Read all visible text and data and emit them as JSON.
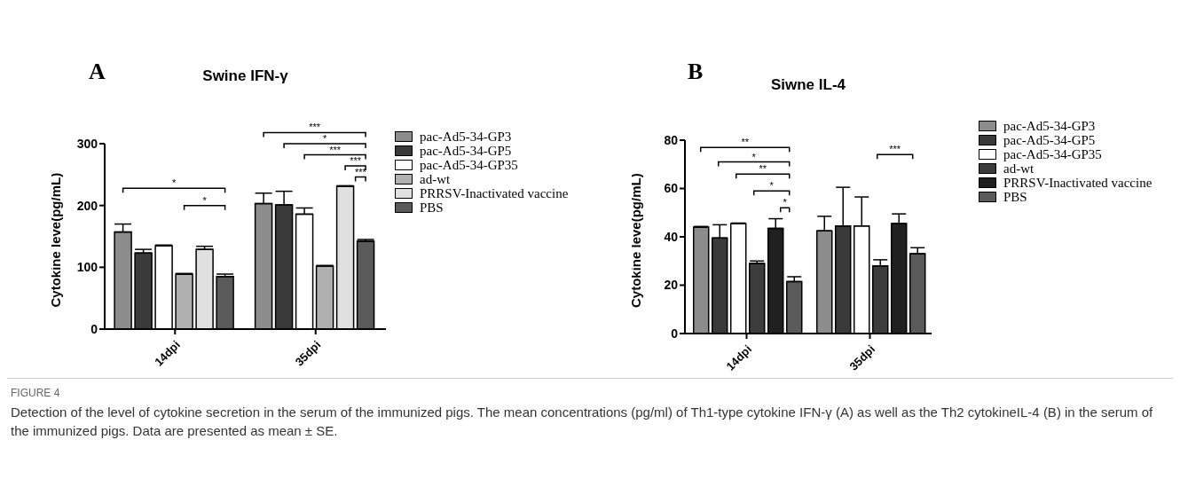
{
  "chart_data": [
    {
      "type": "bar",
      "title": "Swine IFN-γ",
      "ylabel": "Cytokine leve(pg/mL)",
      "categories": [
        "14dpi",
        "35dpi"
      ],
      "series": [
        {
          "name": "pac-Ad5-34-GP3",
          "color": "#8c8c8c",
          "values": [
            157,
            203
          ],
          "errors": [
            [
              157,
              170
            ],
            [
              203,
              220
            ]
          ]
        },
        {
          "name": "pac-Ad5-34-GP5",
          "color": "#3a3a3a",
          "values": [
            123,
            201
          ],
          "errors": [
            [
              123,
              129
            ],
            [
              201,
              223
            ]
          ]
        },
        {
          "name": "pac-Ad5-34-GP35",
          "color": "#ffffff",
          "values": [
            135,
            186
          ],
          "errors": [
            [
              135,
              136
            ],
            [
              186,
              196
            ]
          ]
        },
        {
          "name": "ad-wt",
          "color": "#b0b0b0",
          "values": [
            89,
            102
          ],
          "errors": [
            [
              89,
              90
            ],
            [
              102,
              103
            ]
          ]
        },
        {
          "name": "PRRSV-Inactivated vaccine",
          "color": "#e0e0e0",
          "values": [
            129,
            231
          ],
          "errors": [
            [
              129,
              134
            ],
            [
              231,
              232
            ]
          ]
        },
        {
          "name": "PBS",
          "color": "#5a5a5a",
          "values": [
            85,
            142
          ],
          "errors": [
            [
              85,
              89
            ],
            [
              142,
              145
            ]
          ]
        }
      ],
      "ylim": [
        0,
        300
      ],
      "yticks": [
        0,
        100,
        200,
        300
      ],
      "grid": false,
      "legend": "right",
      "annotations": [
        "A",
        "*",
        "*",
        "***",
        "*",
        "***",
        "***",
        "***",
        "FIGURE 4",
        "Detection of the level of cytokine secretion in the serum of the immunized pigs. The mean concentrations (pg/ml) of Th1-type cytokine IFN-γ (A) as well as the Th2 cytokineIL-4 (B) in the serum of the immunized pigs. Data are presented as mean ± SE."
      ]
    },
    {
      "type": "bar",
      "title": "Siwne IL-4",
      "ylabel": "Cytokine leve(pg/mL)",
      "categories": [
        "14dpi",
        "35dpi"
      ],
      "series": [
        {
          "name": "pac-Ad5-34-GP3",
          "color": "#8c8c8c",
          "values": [
            44,
            42.5
          ],
          "errors": [
            [
              44,
              44.3
            ],
            [
              42.5,
              48.5
            ]
          ]
        },
        {
          "name": "pac-Ad5-34-GP5",
          "color": "#3a3a3a",
          "values": [
            39.5,
            44.5
          ],
          "errors": [
            [
              39.5,
              45
            ],
            [
              44.5,
              60.5
            ]
          ]
        },
        {
          "name": "pac-Ad5-34-GP35",
          "color": "#ffffff",
          "values": [
            45.5,
            44.5
          ],
          "errors": [
            [
              45.5,
              45.7
            ],
            [
              44.5,
              56.5
            ]
          ]
        },
        {
          "name": "ad-wt",
          "color": "#3c3c3c",
          "values": [
            29,
            28
          ],
          "errors": [
            [
              29,
              30
            ],
            [
              28,
              30.5
            ]
          ]
        },
        {
          "name": "PRRSV-Inactivated vaccine",
          "color": "#202020",
          "values": [
            43.5,
            45.5
          ],
          "errors": [
            [
              43.5,
              47.5
            ],
            [
              45.5,
              49.5
            ]
          ]
        },
        {
          "name": "PBS",
          "color": "#5a5a5a",
          "values": [
            21.5,
            33
          ],
          "errors": [
            [
              21.5,
              23.5
            ],
            [
              33,
              35.5
            ]
          ]
        }
      ],
      "ylim": [
        0,
        80
      ],
      "yticks": [
        0,
        20,
        40,
        60,
        80
      ],
      "grid": false,
      "legend": "right",
      "annotations": [
        "B",
        "**",
        "*",
        "**",
        "*",
        "*",
        "***"
      ]
    }
  ]
}
